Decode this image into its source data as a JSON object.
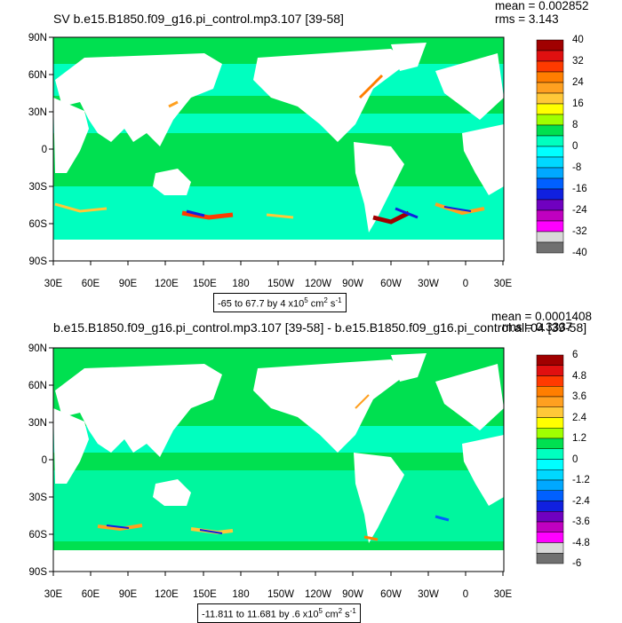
{
  "maps": [
    {
      "title": "SV b.e15.B1850.f09_g16.pi_control.mp3.107 [39-58]",
      "mean_label": "mean = 0.002852",
      "rms_label": "rms = 3.143",
      "range_prefix": "-65 to 67.7 by 4 x10",
      "range_exp": "5",
      "range_units": " cm",
      "range_units_exp": "2",
      "range_tail": " s",
      "range_tail_exp": "-1",
      "lat_labels": [
        "90N",
        "60N",
        "30N",
        "0",
        "30S",
        "60S",
        "90S"
      ],
      "lon_labels": [
        "30E",
        "60E",
        "90E",
        "120E",
        "150E",
        "180",
        "150W",
        "120W",
        "90W",
        "60W",
        "30W",
        "0",
        "30E"
      ],
      "colorbar_labels": [
        "40",
        "32",
        "24",
        "16",
        "8",
        "0",
        "-8",
        "-16",
        "-24",
        "-32",
        "-40"
      ]
    },
    {
      "title": "b.e15.B1850.f09_g16.pi_control.mp3.107 [39-58] - b.e15.B1850.f09_g16.pi_control.all.04 [39-58]",
      "mean_label": "mean = 0.0001408",
      "rms_label": "rms = 0.3337",
      "range_prefix": "-11.811 to 11.681 by .6 x10",
      "range_exp": "5",
      "range_units": " cm",
      "range_units_exp": "2",
      "range_tail": " s",
      "range_tail_exp": "-1",
      "lat_labels": [
        "90N",
        "60N",
        "30N",
        "0",
        "30S",
        "60S",
        "90S"
      ],
      "lon_labels": [
        "30E",
        "60E",
        "90E",
        "120E",
        "150E",
        "180",
        "150W",
        "120W",
        "90W",
        "60W",
        "30W",
        "0",
        "30E"
      ],
      "colorbar_labels": [
        "6",
        "4.8",
        "3.6",
        "2.4",
        "1.2",
        "0",
        "-1.2",
        "-2.4",
        "-3.6",
        "-4.8",
        "-6"
      ]
    }
  ],
  "colorbar_colors": [
    "#a00000",
    "#e01010",
    "#ff3a00",
    "#ff7e00",
    "#ffa020",
    "#ffc838",
    "#ffff00",
    "#a0ff00",
    "#00e050",
    "#00ffbf",
    "#00ffff",
    "#00d8ff",
    "#00a8ff",
    "#0060ff",
    "#1020e0",
    "#7000c0",
    "#c000c0",
    "#ff00ff",
    "#d8d8d8",
    "#707070"
  ],
  "map_colors": {
    "ocean_mid": "#00ffbf",
    "ocean_low": "#00e050",
    "land": "#ffffff"
  }
}
